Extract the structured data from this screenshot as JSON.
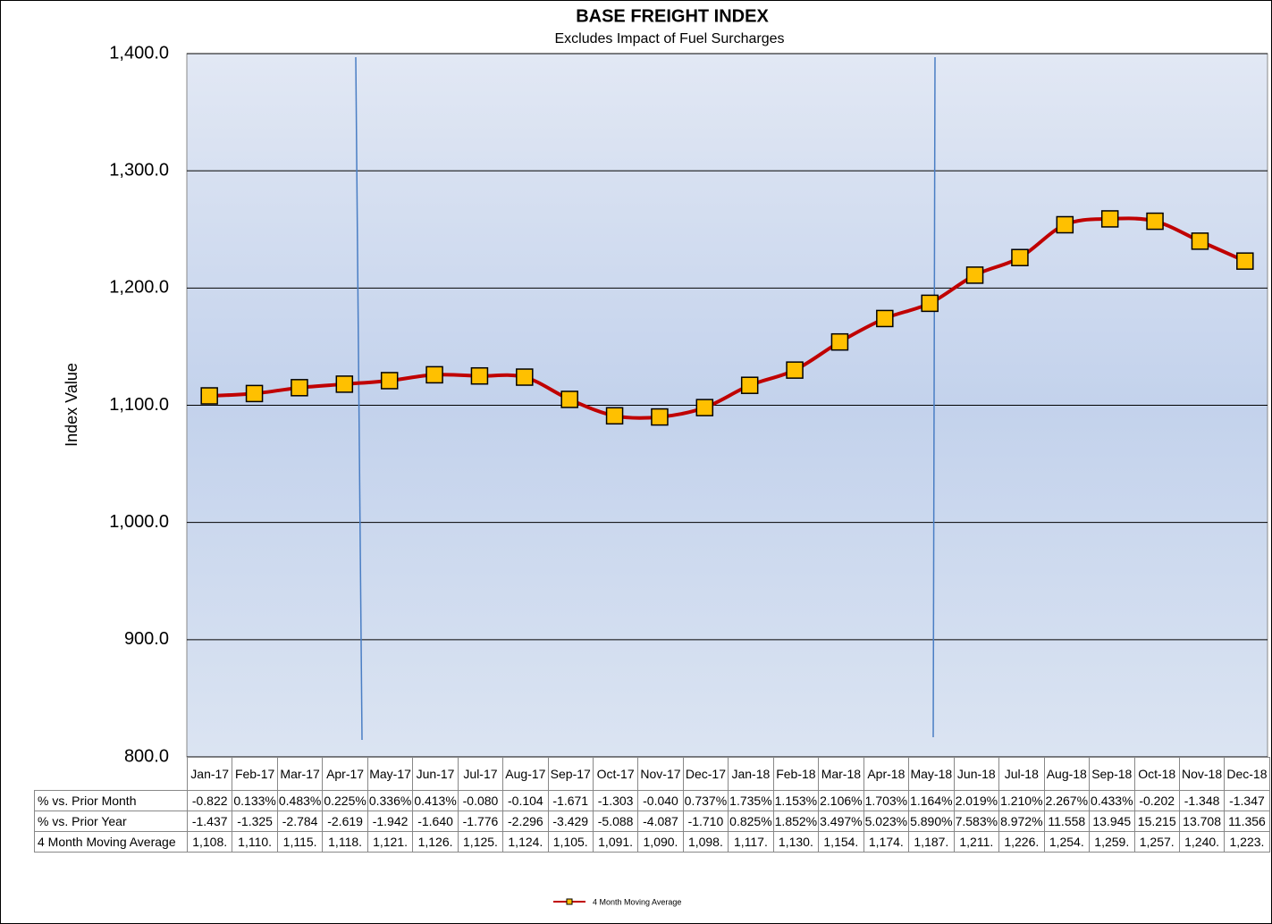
{
  "chart_data": {
    "type": "line",
    "title": "BASE FREIGHT INDEX",
    "subtitle": "Excludes Impact of Fuel Surcharges",
    "y_label": "Index Value",
    "categories": [
      "Jan-17",
      "Feb-17",
      "Mar-17",
      "Apr-17",
      "May-17",
      "Jun-17",
      "Jul-17",
      "Aug-17",
      "Sep-17",
      "Oct-17",
      "Nov-17",
      "Dec-17",
      "Jan-18",
      "Feb-18",
      "Mar-18",
      "Apr-18",
      "May-18",
      "Jun-18",
      "Jul-18",
      "Aug-18",
      "Sep-18",
      "Oct-18",
      "Nov-18",
      "Dec-18"
    ],
    "series": [
      {
        "name": "4 Month Moving Average",
        "color": "#c00000",
        "marker_color": "#ffc000",
        "values": [
          1108,
          1110,
          1115,
          1118,
          1121,
          1126,
          1125,
          1124,
          1105,
          1091,
          1090,
          1098,
          1117,
          1130,
          1154,
          1174,
          1187,
          1211,
          1226,
          1254,
          1259,
          1257,
          1240,
          1223
        ],
        "value_labels": [
          "1,108.",
          "1,110.",
          "1,115.",
          "1,118.",
          "1,121.",
          "1,126.",
          "1,125.",
          "1,124.",
          "1,105.",
          "1,091.",
          "1,090.",
          "1,098.",
          "1,117.",
          "1,130.",
          "1,154.",
          "1,174.",
          "1,187.",
          "1,211.",
          "1,226.",
          "1,254.",
          "1,259.",
          "1,257.",
          "1,240.",
          "1,223."
        ]
      }
    ],
    "data_table": [
      {
        "label": "% vs. Prior Month",
        "cells": [
          "-0.822",
          "0.133%",
          "0.483%",
          "0.225%",
          "0.336%",
          "0.413%",
          "-0.080",
          "-0.104",
          "-1.671",
          "-1.303",
          "-0.040",
          "0.737%",
          "1.735%",
          "1.153%",
          "2.106%",
          "1.703%",
          "1.164%",
          "2.019%",
          "1.210%",
          "2.267%",
          "0.433%",
          "-0.202",
          "-1.348",
          "-1.347"
        ]
      },
      {
        "label": "% vs. Prior Year",
        "cells": [
          "-1.437",
          "-1.325",
          "-2.784",
          "-2.619",
          "-1.942",
          "-1.640",
          "-1.776",
          "-2.296",
          "-3.429",
          "-5.088",
          "-4.087",
          "-1.710",
          "0.825%",
          "1.852%",
          "3.497%",
          "5.023%",
          "5.890%",
          "7.583%",
          "8.972%",
          "11.558",
          "13.945",
          "15.215",
          "13.708",
          "11.356"
        ]
      }
    ],
    "ylim": [
      800,
      1400
    ],
    "yticks": [
      {
        "value": 800,
        "label": "800.0"
      },
      {
        "value": 900,
        "label": "900.0"
      },
      {
        "value": 1000,
        "label": "1,000.0"
      },
      {
        "value": 1100,
        "label": "1,100.0"
      },
      {
        "value": 1200,
        "label": "1,200.0"
      },
      {
        "value": 1300,
        "label": "1,300.0"
      },
      {
        "value": 1400,
        "label": "1,400.0"
      }
    ],
    "grid": true
  }
}
